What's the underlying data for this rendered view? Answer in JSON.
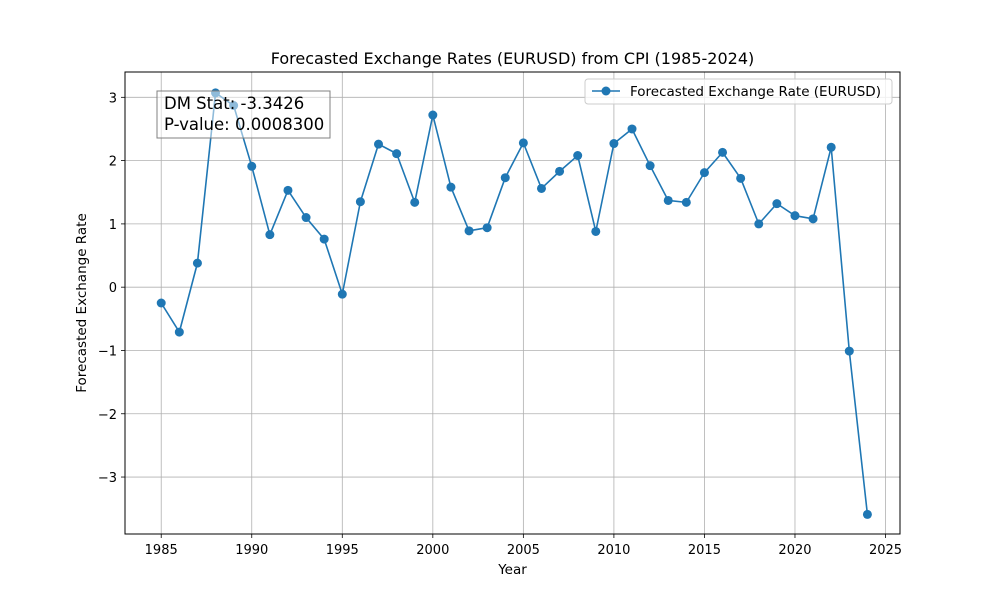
{
  "chart_data": {
    "type": "line",
    "title": "Forecasted Exchange Rates (EURUSD) from CPI (1985-2024)",
    "xlabel": "Year",
    "ylabel": "Forecasted Exchange Rate",
    "xlim": [
      1983,
      2025.8
    ],
    "ylim": [
      -3.9,
      3.4
    ],
    "xticks": [
      1985,
      1990,
      1995,
      2000,
      2005,
      2010,
      2015,
      2020,
      2025
    ],
    "xtick_labels": [
      "1985",
      "1990",
      "1995",
      "2000",
      "2005",
      "2010",
      "2015",
      "2020",
      "2025"
    ],
    "yticks": [
      -3,
      -2,
      -1,
      0,
      1,
      2,
      3
    ],
    "ytick_labels": [
      "−3",
      "−2",
      "−1",
      "0",
      "1",
      "2",
      "3"
    ],
    "grid": true,
    "legend_position": "top-right",
    "series": [
      {
        "name": "Forecasted Exchange Rate (EURUSD)",
        "color": "#1f77b4",
        "marker": "circle",
        "x": [
          1985,
          1986,
          1987,
          1988,
          1989,
          1990,
          1991,
          1992,
          1993,
          1994,
          1995,
          1996,
          1997,
          1998,
          1999,
          2000,
          2001,
          2002,
          2003,
          2004,
          2005,
          2006,
          2007,
          2008,
          2009,
          2010,
          2011,
          2012,
          2013,
          2014,
          2015,
          2016,
          2017,
          2018,
          2019,
          2020,
          2021,
          2022,
          2023,
          2024
        ],
        "y": [
          -0.25,
          -0.71,
          0.38,
          3.07,
          2.87,
          1.91,
          0.83,
          1.53,
          1.1,
          0.76,
          -0.11,
          1.35,
          2.26,
          2.11,
          1.34,
          2.72,
          1.58,
          0.89,
          0.94,
          1.73,
          2.28,
          1.56,
          1.83,
          2.08,
          0.88,
          2.27,
          2.5,
          1.92,
          1.37,
          1.34,
          1.81,
          2.13,
          1.72,
          1.0,
          1.32,
          1.13,
          1.08,
          2.21,
          -1.01,
          -3.59
        ]
      }
    ],
    "annotation": {
      "line1": "DM Stat: -3.3426",
      "line2": "P-value: 0.0008300"
    }
  }
}
